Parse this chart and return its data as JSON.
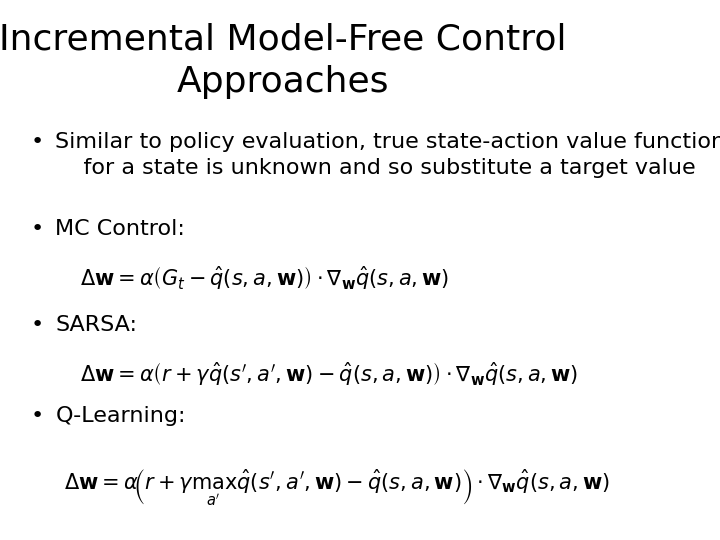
{
  "title_line1": "Incremental Model-Free Control",
  "title_line2": "Approaches",
  "title_fontsize": 26,
  "bullet_fontsize": 16,
  "math_fontsize": 15,
  "background_color": "#ffffff",
  "text_color": "#000000",
  "bullet1_line1": "Similar to policy evaluation, true state-action value function",
  "bullet1_line2": "    for a state is unknown and so substitute a target value",
  "bullet2": "MC Control:",
  "formula_mc": "$\\Delta\\mathbf{w} = \\alpha\\left(G_t - \\hat{q}(s, a, \\mathbf{w})\\right) \\cdot \\nabla_{\\mathbf{w}}\\hat{q}(s, a, \\mathbf{w})$",
  "bullet3": "SARSA:",
  "formula_sarsa": "$\\Delta\\mathbf{w} = \\alpha\\left(r + \\gamma\\hat{q}(s', a', \\mathbf{w}) - \\hat{q}(s, a, \\mathbf{w})\\right) \\cdot \\nabla_{\\mathbf{w}}\\hat{q}(s, a, \\mathbf{w})$",
  "bullet4": "Q-Learning:",
  "formula_qlearn": "$\\Delta\\mathbf{w} = \\alpha\\!\\left(r + \\gamma\\max_{a'}\\hat{q}(s', a', \\mathbf{w}) - \\hat{q}(s, a, \\mathbf{w})\\right) \\cdot \\nabla_{\\mathbf{w}}\\hat{q}(s, a, \\mathbf{w})$"
}
